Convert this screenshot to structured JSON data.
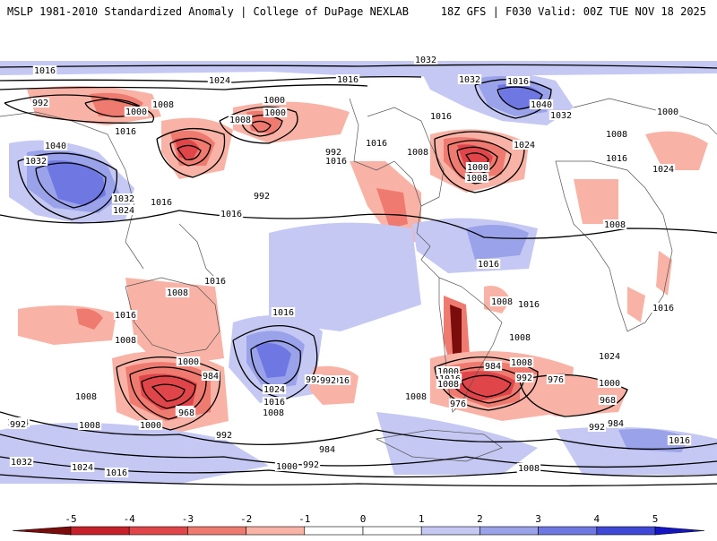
{
  "header": {
    "left": "MSLP 1981-2010 Standardized Anomaly | College of DuPage NEXLAB",
    "right": "18Z GFS | F030 Valid: 00Z TUE NOV 18 2025"
  },
  "colors": {
    "background": "#ffffff",
    "contour": "#000000",
    "coast": "#555555",
    "neg5": "#7a0c0c",
    "neg4": "#c8202a",
    "neg3": "#e0454a",
    "neg2": "#ef7a70",
    "neg1": "#f8b3a6",
    "zero": "#ffffff",
    "pos1": "#c4c8f2",
    "pos2": "#9aa2ea",
    "pos3": "#6f78e2",
    "pos4": "#3f48d6",
    "pos5": "#1515c4"
  },
  "colorbar": {
    "ticks": [
      "-5",
      "-4",
      "-3",
      "-2",
      "-1",
      "0",
      "1",
      "2",
      "3",
      "4",
      "5"
    ]
  },
  "contour_labels": [
    {
      "text": "1032"
    },
    {
      "text": "1016"
    },
    {
      "text": "1024"
    },
    {
      "text": "1016"
    },
    {
      "text": "992"
    },
    {
      "text": "1000"
    },
    {
      "text": "1008"
    },
    {
      "text": "1016"
    },
    {
      "text": "1040"
    },
    {
      "text": "1032"
    },
    {
      "text": "1032"
    },
    {
      "text": "1024"
    },
    {
      "text": "1016"
    },
    {
      "text": "992"
    },
    {
      "text": "1000"
    },
    {
      "text": "1000"
    },
    {
      "text": "1008"
    },
    {
      "text": "992"
    },
    {
      "text": "1016"
    },
    {
      "text": "1016"
    },
    {
      "text": "1008"
    },
    {
      "text": "1016"
    },
    {
      "text": "1032"
    },
    {
      "text": "1040"
    },
    {
      "text": "1032"
    },
    {
      "text": "1016"
    },
    {
      "text": "1024"
    },
    {
      "text": "1000"
    },
    {
      "text": "1008"
    },
    {
      "text": "1016"
    },
    {
      "text": "1000"
    },
    {
      "text": "1008"
    },
    {
      "text": "1016"
    },
    {
      "text": "1024"
    },
    {
      "text": "1008"
    },
    {
      "text": "1016"
    },
    {
      "text": "1024"
    },
    {
      "text": "1016"
    },
    {
      "text": "1008"
    },
    {
      "text": "1008"
    },
    {
      "text": "1016"
    },
    {
      "text": "1008"
    },
    {
      "text": "1016"
    },
    {
      "text": "1016"
    },
    {
      "text": "1008"
    },
    {
      "text": "1016"
    },
    {
      "text": "1024"
    },
    {
      "text": "1016"
    },
    {
      "text": "1008"
    },
    {
      "text": "1000"
    },
    {
      "text": "984"
    },
    {
      "text": "976"
    },
    {
      "text": "968"
    },
    {
      "text": "1008"
    },
    {
      "text": "1000"
    },
    {
      "text": "992"
    },
    {
      "text": "1008"
    },
    {
      "text": "1024"
    },
    {
      "text": "1016"
    },
    {
      "text": "1008"
    },
    {
      "text": "992"
    },
    {
      "text": "1000"
    },
    {
      "text": "1016"
    },
    {
      "text": "1008"
    },
    {
      "text": "984"
    },
    {
      "text": "992"
    },
    {
      "text": "976"
    },
    {
      "text": "1000"
    },
    {
      "text": "976"
    },
    {
      "text": "1008"
    },
    {
      "text": "968"
    },
    {
      "text": "992"
    },
    {
      "text": "984"
    },
    {
      "text": "1016"
    },
    {
      "text": "992"
    },
    {
      "text": "1032"
    },
    {
      "text": "1024"
    },
    {
      "text": "1016"
    },
    {
      "text": "992"
    },
    {
      "text": "984"
    },
    {
      "text": "1000"
    },
    {
      "text": "992"
    },
    {
      "text": "1008"
    }
  ]
}
